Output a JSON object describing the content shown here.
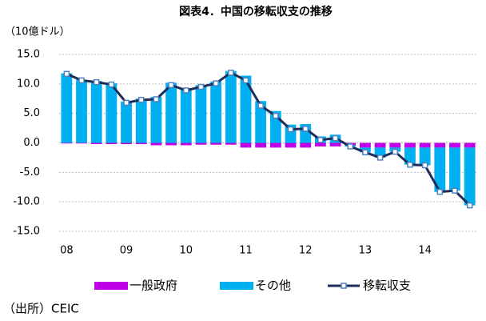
{
  "chart_data": {
    "type": "bar_line",
    "title": "図表4．中国の移転収支の推移",
    "y_label": "（10億ドル）",
    "source": "（出所）CEIC",
    "categories": [
      "08",
      null,
      null,
      null,
      "09",
      null,
      null,
      null,
      "10",
      null,
      null,
      null,
      "11",
      null,
      null,
      null,
      "12",
      null,
      null,
      null,
      "13",
      null,
      null,
      null,
      "14",
      null,
      null,
      null
    ],
    "series": [
      {
        "name": "一般政府",
        "type": "bar",
        "color": "#c000e6",
        "values": [
          -0.1,
          -0.1,
          -0.2,
          -0.2,
          -0.2,
          -0.2,
          -0.4,
          -0.4,
          -0.4,
          -0.3,
          -0.3,
          -0.3,
          -0.8,
          -0.8,
          -0.8,
          -0.8,
          -0.8,
          -0.6,
          -0.6,
          -0.4,
          -0.8,
          -0.8,
          -0.8,
          -0.8,
          -0.8,
          -0.8,
          -0.8,
          -0.8
        ]
      },
      {
        "name": "その他",
        "type": "bar",
        "color": "#00b0f0",
        "values": [
          11.8,
          10.7,
          10.5,
          10.1,
          7.0,
          7.5,
          7.8,
          10.2,
          9.3,
          9.8,
          10.4,
          12.2,
          11.4,
          7.1,
          5.4,
          3.1,
          3.2,
          1.1,
          1.4,
          -0.2,
          -0.8,
          -1.7,
          -0.7,
          -2.9,
          -3.0,
          -7.5,
          -7.3,
          -9.8
        ]
      },
      {
        "name": "移転収支",
        "type": "line",
        "color": "#1f2d5a",
        "marker_color": "#4f81bd",
        "values": [
          11.7,
          10.6,
          10.3,
          9.9,
          6.8,
          7.3,
          7.4,
          9.8,
          8.9,
          9.5,
          10.1,
          11.9,
          10.6,
          6.3,
          4.6,
          2.3,
          2.4,
          0.5,
          0.8,
          -0.6,
          -1.6,
          -2.5,
          -1.5,
          -3.7,
          -3.8,
          -8.3,
          -8.1,
          -10.6
        ]
      }
    ],
    "ylim": [
      -15,
      15
    ],
    "yticks": [
      {
        "value": -15,
        "label": "-15.0"
      },
      {
        "value": -10,
        "label": "-10.0"
      },
      {
        "value": -5,
        "label": "-5.0"
      },
      {
        "value": 0,
        "label": "0.0"
      },
      {
        "value": 5,
        "label": "5.0"
      },
      {
        "value": 10,
        "label": "10.0"
      },
      {
        "value": 15,
        "label": "15.0"
      }
    ],
    "grid": true,
    "legend": "bottom"
  }
}
